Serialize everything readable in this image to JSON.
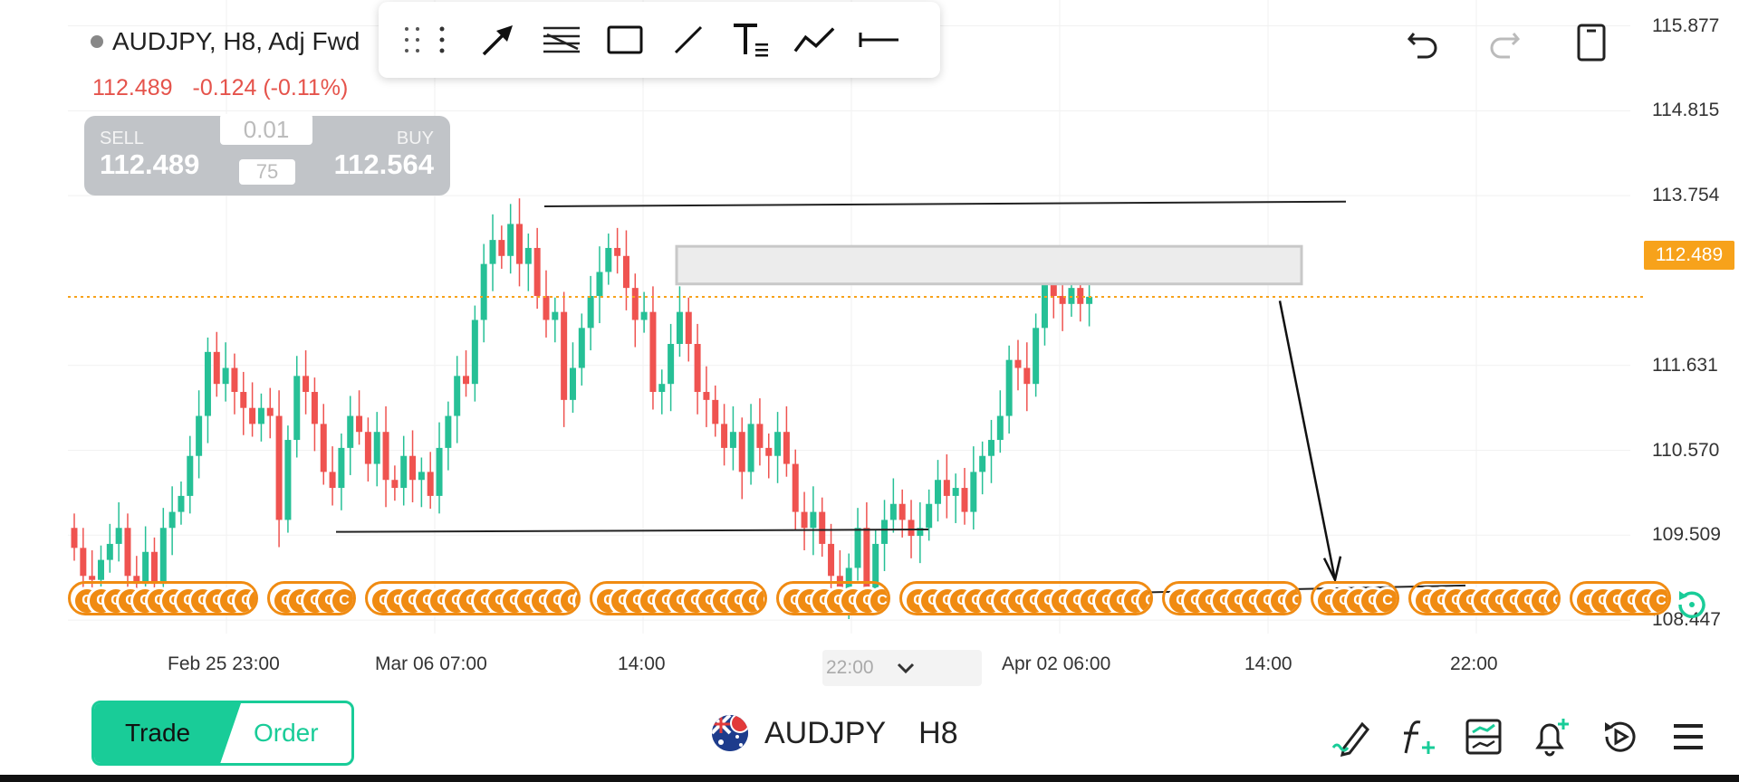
{
  "symbol": {
    "name": "AUDJPY, H8, Adj Fwd",
    "last_price": "112.489",
    "change": "-0.124 (-0.11%)"
  },
  "trade_panel": {
    "sell_label": "SELL",
    "sell_price": "112.489",
    "buy_label": "BUY",
    "buy_price": "112.564",
    "lot_size": "0.01",
    "spread": "75"
  },
  "toolbar": {
    "tools": [
      "drag-handle-icon",
      "more-icon",
      "arrow-tool-icon",
      "fib-tool-icon",
      "rectangle-tool-icon",
      "trend-line-tool-icon",
      "text-tool-icon",
      "path-tool-icon",
      "horizontal-line-tool-icon"
    ]
  },
  "top_actions": [
    "undo-icon",
    "redo-icon",
    "phone-layout-icon"
  ],
  "price_axis": {
    "ticks": [
      "115.877",
      "114.815",
      "113.754",
      "111.631",
      "110.570",
      "109.509",
      "108.447"
    ],
    "current_price": "112.489"
  },
  "time_axis": {
    "ticks": [
      "Feb 25 23:00",
      "Mar 06 07:00",
      "14:00",
      "Apr 02 06:00",
      "14:00",
      "22:00"
    ],
    "cursor_label": "22:00"
  },
  "events": {
    "glyph": "C",
    "groups": [
      13,
      5,
      15,
      12,
      7,
      18,
      9,
      5,
      10,
      6
    ]
  },
  "colors": {
    "bull": "#26c096",
    "bear": "#ef5350",
    "accent": "#19cc98",
    "price_tag": "#f7a21b",
    "event": "#f08b12"
  },
  "chart_data": {
    "type": "candlestick",
    "symbol": "AUDJPY",
    "timeframe": "H8",
    "y_range": [
      107.6,
      116.2
    ],
    "closes": [
      109.35,
      109.0,
      108.95,
      109.2,
      109.4,
      109.6,
      109.0,
      108.9,
      109.3,
      108.9,
      109.6,
      109.8,
      110.0,
      110.5,
      111.0,
      111.8,
      111.4,
      111.6,
      111.3,
      111.1,
      110.9,
      111.1,
      111.0,
      109.7,
      110.7,
      111.5,
      111.3,
      110.9,
      110.3,
      110.1,
      110.6,
      111.0,
      110.8,
      110.4,
      110.8,
      110.2,
      110.1,
      110.5,
      110.2,
      110.3,
      110.0,
      110.6,
      111.0,
      111.5,
      111.4,
      112.2,
      112.9,
      113.2,
      113.0,
      113.4,
      112.9,
      113.1,
      112.5,
      112.2,
      112.3,
      111.2,
      111.6,
      112.1,
      112.5,
      112.8,
      113.1,
      113.0,
      112.6,
      112.2,
      112.3,
      111.3,
      111.4,
      111.9,
      112.3,
      111.9,
      111.3,
      111.2,
      110.9,
      110.6,
      110.8,
      110.3,
      110.9,
      110.6,
      110.5,
      110.8,
      110.4,
      109.8,
      109.6,
      109.8,
      109.4,
      109.0,
      108.8,
      109.1,
      109.6,
      108.8,
      109.4,
      109.7,
      109.9,
      109.7,
      109.5,
      109.6,
      109.9,
      110.2,
      110.0,
      110.1,
      109.8,
      110.3,
      110.5,
      110.7,
      111.0,
      111.7,
      111.6,
      111.4,
      112.1,
      112.7,
      112.5,
      112.4,
      112.6,
      112.4,
      112.49
    ],
    "drawings": {
      "resistance_line": [
        113.62,
        113.68
      ],
      "supply_zone": [
        112.65,
        113.12
      ],
      "range_support": 109.55,
      "swing_low_line": [
        108.75,
        108.88
      ],
      "projection_target": 108.95
    }
  },
  "bottom_bar": {
    "trade_label": "Trade",
    "order_label": "Order",
    "symbol": "AUDJPY",
    "timeframe": "H8",
    "icons": [
      "draw-pen-icon",
      "indicator-f-icon",
      "layout-icon",
      "alert-bell-icon",
      "replay-icon",
      "menu-icon"
    ]
  }
}
